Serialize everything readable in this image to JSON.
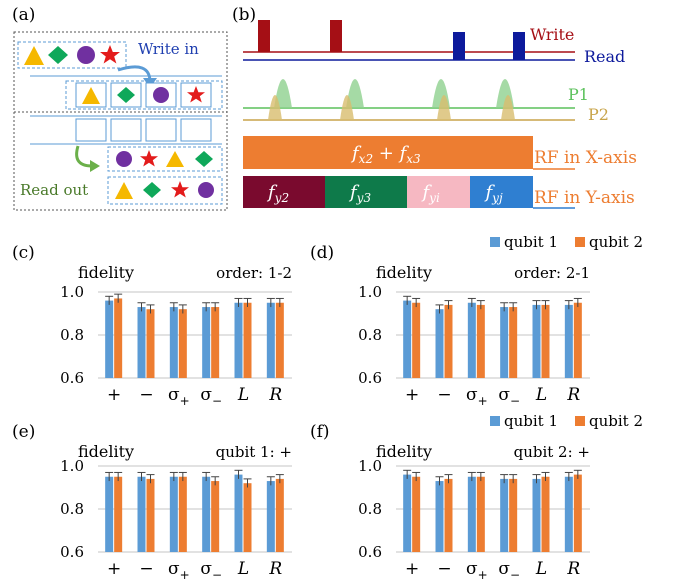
{
  "panels": {
    "a": {
      "label": "(a)",
      "write_label": "Write in",
      "read_label": "Read out"
    },
    "b": {
      "label": "(b)",
      "write": "Write",
      "read": "Read",
      "p1": "P1",
      "p2": "P2",
      "rf_x_label": "RF in X-axis",
      "rf_y_label": "RF in Y-axis",
      "rf_x_freq": {
        "f": "f",
        "s1": "x2",
        "plus": " + ",
        "f2": "f",
        "s2": "x3"
      },
      "rf_y_freqs": [
        {
          "f": "f",
          "sub": "y2",
          "color": "#7a0a2e"
        },
        {
          "f": "f",
          "sub": "y3",
          "color": "#0e7a4a"
        },
        {
          "f": "f",
          "sub": "yi",
          "color": "#f6b8c2"
        },
        {
          "f": "f",
          "sub": "yj",
          "color": "#2f7fd1"
        }
      ]
    }
  },
  "legend": {
    "qubit1": "qubit 1",
    "qubit2": "qubit 2"
  },
  "colors": {
    "qubit1": "#5b9bd5",
    "qubit2": "#ed7d31",
    "write": "#a50f15",
    "read": "#0d1a9c",
    "p1": "#5cc15c",
    "p2": "#c8a44a",
    "rf_x": "#ed7d31",
    "grid": "#d9d9d9",
    "text_blue": "#1f3fb0",
    "text_green": "#4a7a2a"
  },
  "chart_data": [
    {
      "panel": "(c)",
      "type": "bar",
      "ylabel": "fidelity",
      "annotation": "order: 1-2",
      "ylim": [
        0.6,
        1.0
      ],
      "yticks": [
        "0.6",
        "0.8",
        "1.0"
      ],
      "categories": [
        "+",
        "−",
        "σ+",
        "σ−",
        "L",
        "R"
      ],
      "series": [
        {
          "name": "qubit 1",
          "values": [
            0.96,
            0.93,
            0.93,
            0.93,
            0.95,
            0.95
          ],
          "errors": [
            0.02,
            0.02,
            0.02,
            0.02,
            0.02,
            0.02
          ]
        },
        {
          "name": "qubit 2",
          "values": [
            0.97,
            0.92,
            0.92,
            0.93,
            0.95,
            0.95
          ],
          "errors": [
            0.02,
            0.02,
            0.02,
            0.02,
            0.02,
            0.02
          ]
        }
      ]
    },
    {
      "panel": "(d)",
      "type": "bar",
      "ylabel": "fidelity",
      "annotation": "order: 2-1",
      "ylim": [
        0.6,
        1.0
      ],
      "yticks": [
        "0.6",
        "0.8",
        "1.0"
      ],
      "categories": [
        "+",
        "−",
        "σ+",
        "σ−",
        "L",
        "R"
      ],
      "series": [
        {
          "name": "qubit 1",
          "values": [
            0.96,
            0.92,
            0.95,
            0.93,
            0.94,
            0.94
          ],
          "errors": [
            0.02,
            0.02,
            0.02,
            0.02,
            0.02,
            0.02
          ]
        },
        {
          "name": "qubit 2",
          "values": [
            0.95,
            0.94,
            0.94,
            0.93,
            0.94,
            0.95
          ],
          "errors": [
            0.02,
            0.02,
            0.02,
            0.02,
            0.02,
            0.02
          ]
        }
      ]
    },
    {
      "panel": "(e)",
      "type": "bar",
      "ylabel": "fidelity",
      "annotation": "qubit 1: +",
      "ylim": [
        0.6,
        1.0
      ],
      "yticks": [
        "0.6",
        "0.8",
        "1.0"
      ],
      "categories": [
        "+",
        "−",
        "σ+",
        "σ−",
        "L",
        "R"
      ],
      "series": [
        {
          "name": "qubit 1",
          "values": [
            0.95,
            0.95,
            0.95,
            0.95,
            0.96,
            0.93
          ],
          "errors": [
            0.02,
            0.02,
            0.02,
            0.02,
            0.02,
            0.02
          ]
        },
        {
          "name": "qubit 2",
          "values": [
            0.95,
            0.94,
            0.95,
            0.93,
            0.92,
            0.94
          ],
          "errors": [
            0.02,
            0.02,
            0.02,
            0.02,
            0.02,
            0.02
          ]
        }
      ]
    },
    {
      "panel": "(f)",
      "type": "bar",
      "ylabel": "fidelity",
      "annotation": "qubit 2: +",
      "ylim": [
        0.6,
        1.0
      ],
      "yticks": [
        "0.6",
        "0.8",
        "1.0"
      ],
      "categories": [
        "+",
        "−",
        "σ+",
        "σ−",
        "L",
        "R"
      ],
      "series": [
        {
          "name": "qubit 1",
          "values": [
            0.96,
            0.93,
            0.95,
            0.94,
            0.94,
            0.95
          ],
          "errors": [
            0.02,
            0.02,
            0.02,
            0.02,
            0.02,
            0.02
          ]
        },
        {
          "name": "qubit 2",
          "values": [
            0.95,
            0.94,
            0.95,
            0.94,
            0.95,
            0.96
          ],
          "errors": [
            0.02,
            0.02,
            0.02,
            0.02,
            0.02,
            0.02
          ]
        }
      ]
    }
  ]
}
